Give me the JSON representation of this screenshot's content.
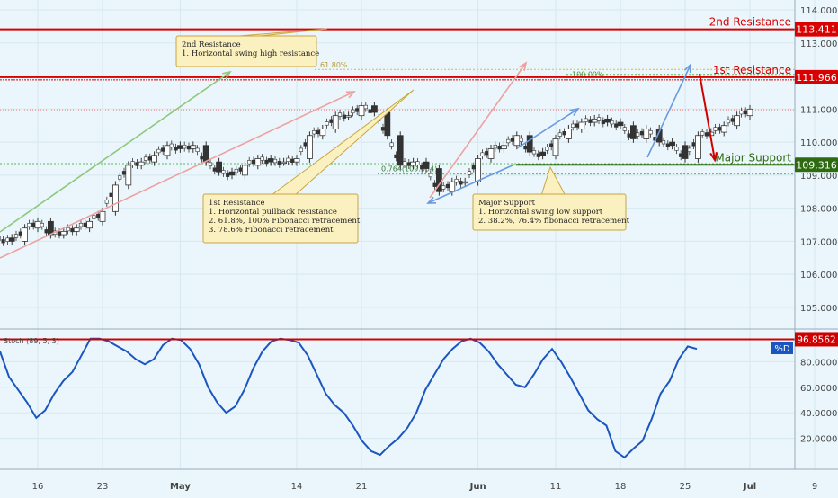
{
  "chart_data": [
    {
      "type": "candlestick",
      "panel": "price",
      "ylim": [
        104.4,
        114.3
      ],
      "yticks": [
        "114.000",
        "113.000",
        "112.000",
        "111.000",
        "110.000",
        "109.000",
        "108.000",
        "107.000",
        "106.000",
        "105.000"
      ],
      "close_path": [
        {
          "date": "2018-04-10",
          "close": 107.1
        },
        {
          "date": "2018-04-12",
          "close": 107.0
        },
        {
          "date": "2018-04-13",
          "close": 107.4
        },
        {
          "date": "2018-04-16",
          "close": 107.6
        },
        {
          "date": "2018-04-17",
          "close": 107.2
        },
        {
          "date": "2018-04-18",
          "close": 107.3
        },
        {
          "date": "2018-04-19",
          "close": 107.4
        },
        {
          "date": "2018-04-20",
          "close": 107.6
        },
        {
          "date": "2018-04-23",
          "close": 107.9
        },
        {
          "date": "2018-04-24",
          "close": 108.7
        },
        {
          "date": "2018-04-25",
          "close": 109.3
        },
        {
          "date": "2018-04-26",
          "close": 109.4
        },
        {
          "date": "2018-04-27",
          "close": 109.6
        },
        {
          "date": "2018-04-30",
          "close": 109.9
        },
        {
          "date": "2018-05-01",
          "close": 109.8
        },
        {
          "date": "2018-05-02",
          "close": 109.9
        },
        {
          "date": "2018-05-03",
          "close": 109.4
        },
        {
          "date": "2018-05-04",
          "close": 109.1
        },
        {
          "date": "2018-05-07",
          "close": 109.0
        },
        {
          "date": "2018-05-08",
          "close": 109.3
        },
        {
          "date": "2018-05-09",
          "close": 109.5
        },
        {
          "date": "2018-05-10",
          "close": 109.4
        },
        {
          "date": "2018-05-11",
          "close": 109.4
        },
        {
          "date": "2018-05-14",
          "close": 109.5
        },
        {
          "date": "2018-05-15",
          "close": 110.2
        },
        {
          "date": "2018-05-16",
          "close": 110.4
        },
        {
          "date": "2018-05-17",
          "close": 110.8
        },
        {
          "date": "2018-05-18",
          "close": 110.8
        },
        {
          "date": "2018-05-21",
          "close": 111.1
        },
        {
          "date": "2018-05-22",
          "close": 110.9
        },
        {
          "date": "2018-05-23",
          "close": 110.2
        },
        {
          "date": "2018-05-24",
          "close": 109.3
        },
        {
          "date": "2018-05-25",
          "close": 109.4
        },
        {
          "date": "2018-05-28",
          "close": 109.2
        },
        {
          "date": "2018-05-29",
          "close": 108.5
        },
        {
          "date": "2018-05-30",
          "close": 108.8
        },
        {
          "date": "2018-05-31",
          "close": 108.8
        },
        {
          "date": "2018-06-01",
          "close": 109.5
        },
        {
          "date": "2018-06-04",
          "close": 109.8
        },
        {
          "date": "2018-06-05",
          "close": 109.9
        },
        {
          "date": "2018-06-06",
          "close": 110.2
        },
        {
          "date": "2018-06-07",
          "close": 109.7
        },
        {
          "date": "2018-06-08",
          "close": 109.6
        },
        {
          "date": "2018-06-11",
          "close": 110.1
        },
        {
          "date": "2018-06-12",
          "close": 110.4
        },
        {
          "date": "2018-06-13",
          "close": 110.6
        },
        {
          "date": "2018-06-14",
          "close": 110.7
        },
        {
          "date": "2018-06-15",
          "close": 110.6
        },
        {
          "date": "2018-06-18",
          "close": 110.5
        },
        {
          "date": "2018-06-19",
          "close": 110.1
        },
        {
          "date": "2018-06-20",
          "close": 110.4
        },
        {
          "date": "2018-06-21",
          "close": 110.0
        },
        {
          "date": "2018-06-22",
          "close": 109.9
        },
        {
          "date": "2018-06-25",
          "close": 109.5
        },
        {
          "date": "2018-06-26",
          "close": 110.2
        },
        {
          "date": "2018-06-27",
          "close": 110.3
        },
        {
          "date": "2018-06-28",
          "close": 110.5
        },
        {
          "date": "2018-06-29",
          "close": 110.8
        },
        {
          "date": "2018-07-02",
          "close": 111.0
        }
      ],
      "levels": [
        {
          "name": "2nd Resistance",
          "value": 113.411,
          "label": "113.411",
          "color": "#d80000"
        },
        {
          "name": "1st Resistance",
          "value": 111.966,
          "label": "111.966",
          "color": "#d80000"
        },
        {
          "name": "Major Support",
          "value": 109.316,
          "label": "109.316",
          "color": "#2e6b10"
        }
      ],
      "fib_labels": [
        "61.80%",
        "100.00%",
        "0.764(109.034)"
      ],
      "annotations": [
        {
          "title": "2nd Resistance",
          "lines": [
            "1. Horizontal swing high resistance"
          ]
        },
        {
          "title": "1st Resistance",
          "lines": [
            "1. Horizontal pullback resistance",
            "2. 61.8%, 100% Fibonacci retracement",
            "3. 78.6% Fibonacci retracement"
          ]
        },
        {
          "title": "Major Support",
          "lines": [
            "1. Horizontal swing low support",
            "2. 38.2%, 76.4% fibonacci retracement"
          ]
        }
      ]
    },
    {
      "type": "line",
      "panel": "stochastic",
      "indicator_label": "Stoch (89, 5, 3)",
      "series_label": "%D",
      "current_value": "96.8562",
      "ylim": [
        0,
        100
      ],
      "yticks": [
        "80.0000",
        "60.0000",
        "40.0000",
        "20.0000"
      ],
      "color": "#1a55c0",
      "values": [
        88,
        68,
        58,
        48,
        36,
        42,
        55,
        65,
        72,
        85,
        98,
        98,
        96,
        92,
        88,
        82,
        78,
        82,
        93,
        98,
        97,
        90,
        78,
        60,
        48,
        40,
        45,
        58,
        75,
        88,
        96,
        98,
        97,
        95,
        85,
        70,
        55,
        46,
        40,
        30,
        18,
        10,
        7,
        14,
        20,
        28,
        40,
        58,
        70,
        82,
        90,
        96,
        98,
        95,
        88,
        78,
        70,
        62,
        60,
        70,
        82,
        90,
        80,
        68,
        55,
        42,
        35,
        30,
        10,
        5,
        12,
        18,
        35,
        55,
        65,
        82,
        92,
        90
      ],
      "x_labels": [
        "16",
        "23",
        "May",
        "14",
        "21",
        "Jun",
        "11",
        "18",
        "25",
        "Jul",
        "9"
      ]
    }
  ]
}
